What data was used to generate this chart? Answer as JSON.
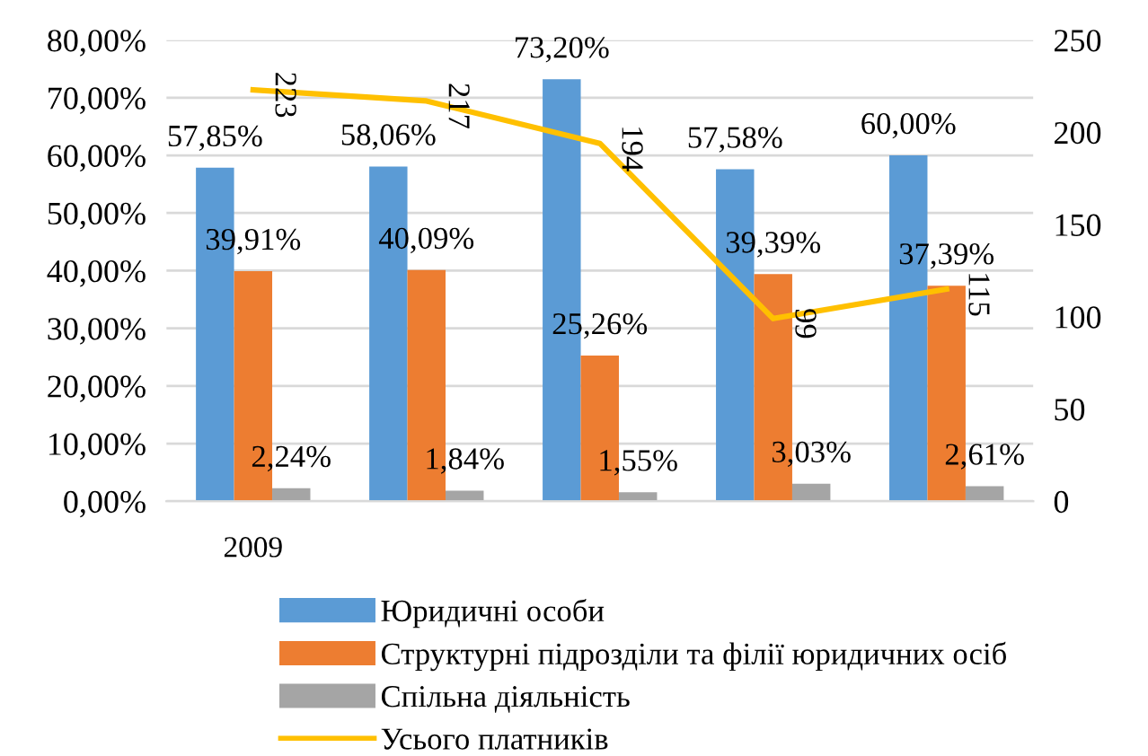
{
  "chart_data": {
    "type": "bar",
    "categories": [
      "2009",
      null,
      null,
      null,
      null
    ],
    "series": [
      {
        "name": "Юридичні особи",
        "color": "#5b9bd5",
        "values": [
          57.85,
          58.06,
          73.2,
          57.58,
          60.0
        ],
        "value_labels": [
          "57,85%",
          "58,06%",
          "73,20%",
          "57,58%",
          "60,00%"
        ]
      },
      {
        "name": "Структурні підрозділи та філії юридичних осіб",
        "color": "#ed7d31",
        "values": [
          39.91,
          40.09,
          25.26,
          39.39,
          37.39
        ],
        "value_labels": [
          "39,91%",
          "40,09%",
          "25,26%",
          "39,39%",
          "37,39%"
        ]
      },
      {
        "name": "Спільна діяльність",
        "color": "#a5a5a5",
        "values": [
          2.24,
          1.84,
          1.55,
          3.03,
          2.61
        ],
        "value_labels": [
          "2,24%",
          "1,84%",
          "1,55%",
          "3,03%",
          "2,61%"
        ]
      },
      {
        "name": "Усього платників",
        "type": "line",
        "axis": "y2",
        "color": "#ffc000",
        "values": [
          223,
          217,
          194,
          99,
          115
        ],
        "value_labels": [
          "223",
          "217",
          "194",
          "99",
          "115"
        ]
      }
    ],
    "ylim": [
      0,
      80
    ],
    "yticks": [
      {
        "value": 0,
        "label": "0,00%"
      },
      {
        "value": 10,
        "label": "10,00%"
      },
      {
        "value": 20,
        "label": "20,00%"
      },
      {
        "value": 30,
        "label": "30,00%"
      },
      {
        "value": 40,
        "label": "40,00%"
      },
      {
        "value": 50,
        "label": "50,00%"
      },
      {
        "value": 60,
        "label": "60,00%"
      },
      {
        "value": 70,
        "label": "70,00%"
      },
      {
        "value": 80,
        "label": "80,00%"
      }
    ],
    "y2lim": [
      0,
      250
    ],
    "y2ticks": [
      0,
      50,
      100,
      150,
      200,
      250
    ],
    "grid": "y",
    "legend": "bottom"
  }
}
